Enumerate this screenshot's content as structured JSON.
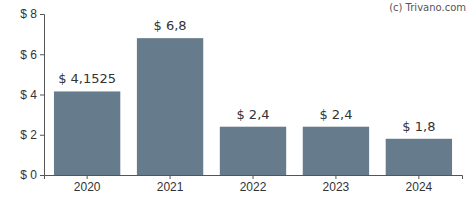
{
  "chart_data": {
    "type": "bar",
    "annotations": [
      "(c) Trivano.com"
    ],
    "categories": [
      "2020",
      "2021",
      "2022",
      "2023",
      "2024"
    ],
    "values": [
      4.1525,
      6.8,
      2.4,
      2.4,
      1.8
    ],
    "value_labels": [
      "$ 4,1525",
      "$ 6,8",
      "$ 2,4",
      "$ 2,4",
      "$ 1,8"
    ],
    "data_labels": true,
    "color": "#667b8c",
    "ylim": [
      0,
      8
    ],
    "yticks": [
      {
        "value": 0,
        "label": "$ 0"
      },
      {
        "value": 2,
        "label": "$ 2"
      },
      {
        "value": 4,
        "label": "$ 4"
      },
      {
        "value": 6,
        "label": "$ 6"
      },
      {
        "value": 8,
        "label": "$ 8"
      }
    ],
    "grid": false
  }
}
